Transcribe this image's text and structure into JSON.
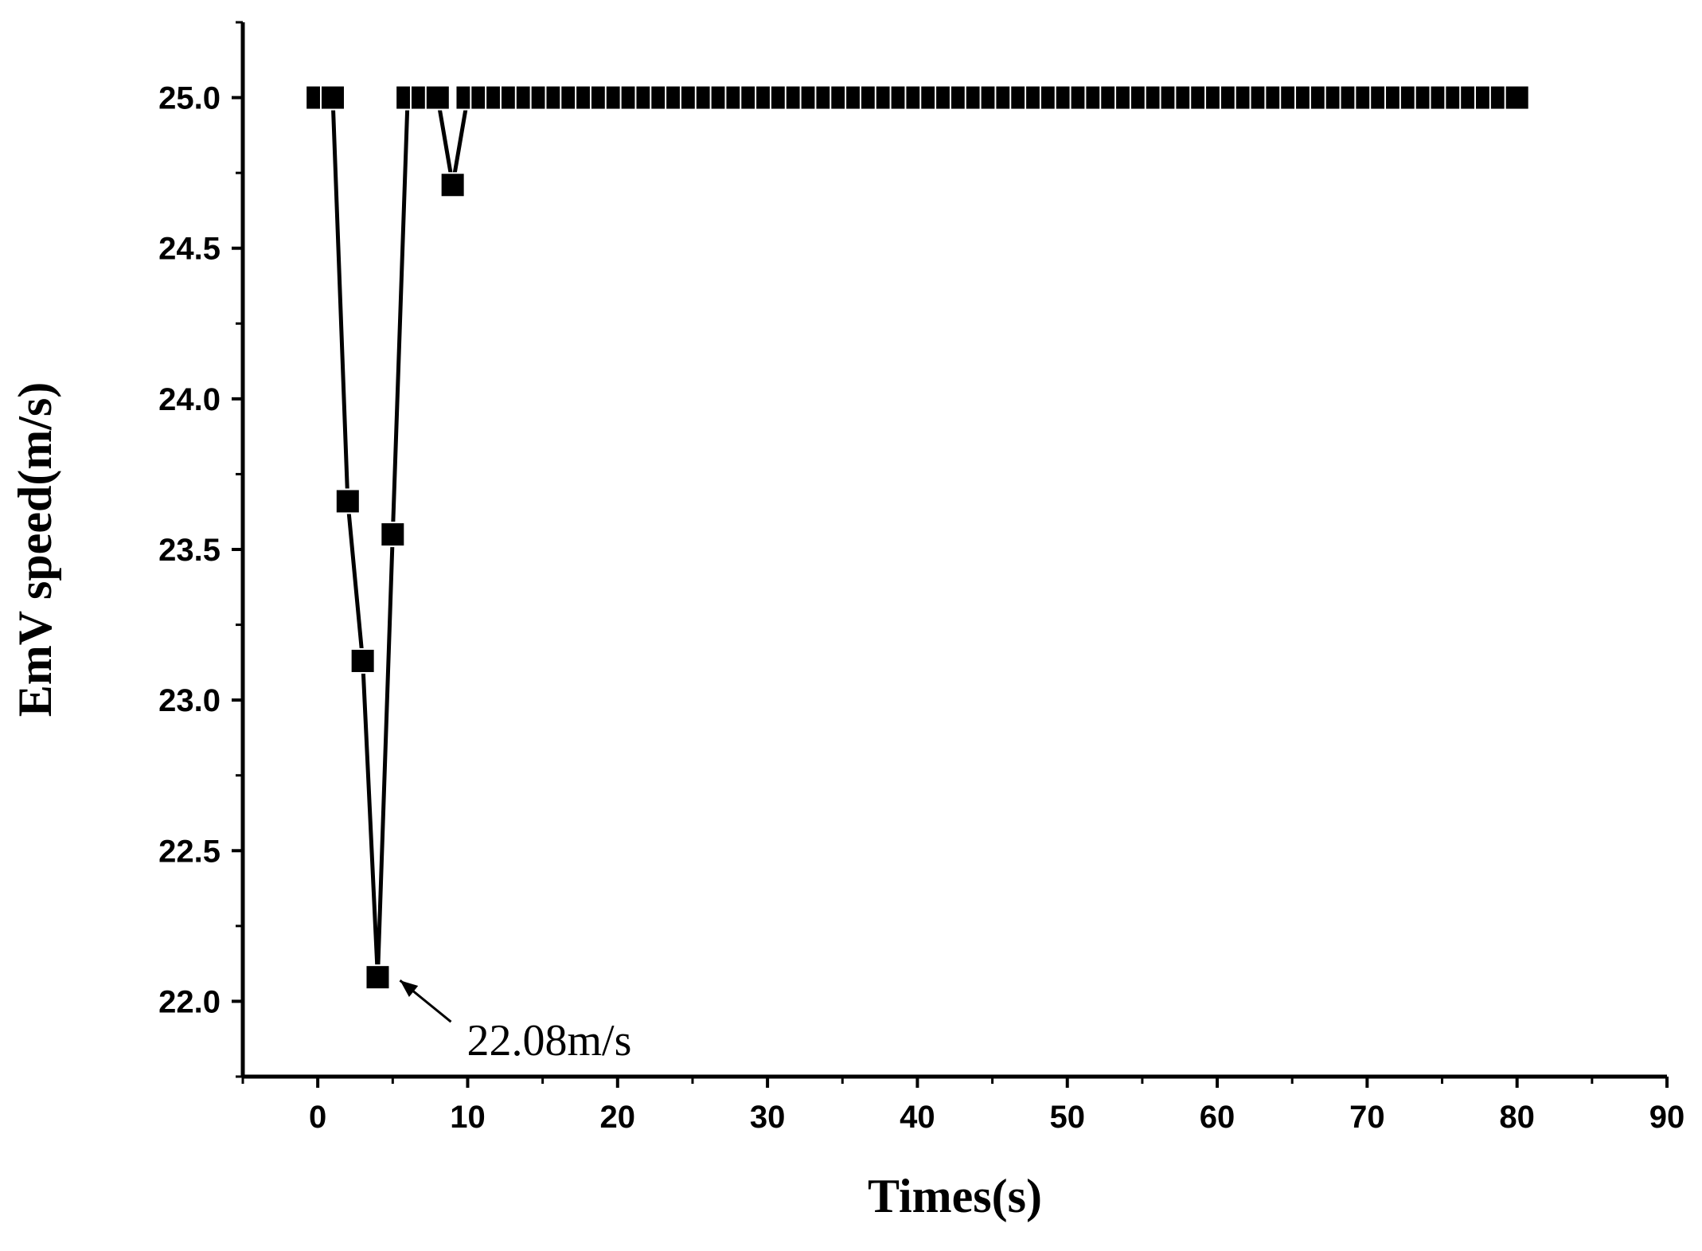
{
  "chart_data": {
    "type": "line",
    "title": "",
    "xlabel": "Times(s)",
    "ylabel": "EmV speed(m/s)",
    "xlim": [
      -5,
      90
    ],
    "ylim": [
      21.75,
      25.25
    ],
    "x_ticks": [
      0,
      10,
      20,
      30,
      40,
      50,
      60,
      70,
      80,
      90
    ],
    "y_ticks": [
      22.0,
      22.5,
      23.0,
      23.5,
      24.0,
      24.5,
      25.0
    ],
    "x_tick_labels": [
      "0",
      "10",
      "20",
      "30",
      "40",
      "50",
      "60",
      "70",
      "80",
      "90"
    ],
    "y_tick_labels": [
      "22.0",
      "22.5",
      "23.0",
      "23.5",
      "24.0",
      "24.5",
      "25.0"
    ],
    "grid": false,
    "legend": "none",
    "marker": "square",
    "color": "#000000",
    "series": [
      {
        "x": [
          0,
          1,
          2,
          3,
          4,
          5,
          6,
          7,
          8,
          9,
          10,
          11,
          12,
          13,
          14,
          15,
          16,
          17,
          18,
          19,
          20,
          21,
          22,
          23,
          24,
          25,
          26,
          27,
          28,
          29,
          30,
          31,
          32,
          33,
          34,
          35,
          36,
          37,
          38,
          39,
          40,
          41,
          42,
          43,
          44,
          45,
          46,
          47,
          48,
          49,
          50,
          51,
          52,
          53,
          54,
          55,
          56,
          57,
          58,
          59,
          60,
          61,
          62,
          63,
          64,
          65,
          66,
          67,
          68,
          69,
          70,
          71,
          72,
          73,
          74,
          75,
          76,
          77,
          78,
          79,
          80
        ],
        "y": [
          25.0,
          25.0,
          23.66,
          23.13,
          22.08,
          23.55,
          25.0,
          25.0,
          25.0,
          24.71,
          25.0,
          25.0,
          25.0,
          25.0,
          25.0,
          25.0,
          25.0,
          25.0,
          25.0,
          25.0,
          25.0,
          25.0,
          25.0,
          25.0,
          25.0,
          25.0,
          25.0,
          25.0,
          25.0,
          25.0,
          25.0,
          25.0,
          25.0,
          25.0,
          25.0,
          25.0,
          25.0,
          25.0,
          25.0,
          25.0,
          25.0,
          25.0,
          25.0,
          25.0,
          25.0,
          25.0,
          25.0,
          25.0,
          25.0,
          25.0,
          25.0,
          25.0,
          25.0,
          25.0,
          25.0,
          25.0,
          25.0,
          25.0,
          25.0,
          25.0,
          25.0,
          25.0,
          25.0,
          25.0,
          25.0,
          25.0,
          25.0,
          25.0,
          25.0,
          25.0,
          25.0,
          25.0,
          25.0,
          25.0,
          25.0,
          25.0,
          25.0,
          25.0,
          25.0,
          25.0,
          25.0
        ]
      }
    ],
    "annotations": [
      {
        "text": "22.08m/s",
        "x": 4,
        "y": 22.08
      }
    ]
  }
}
